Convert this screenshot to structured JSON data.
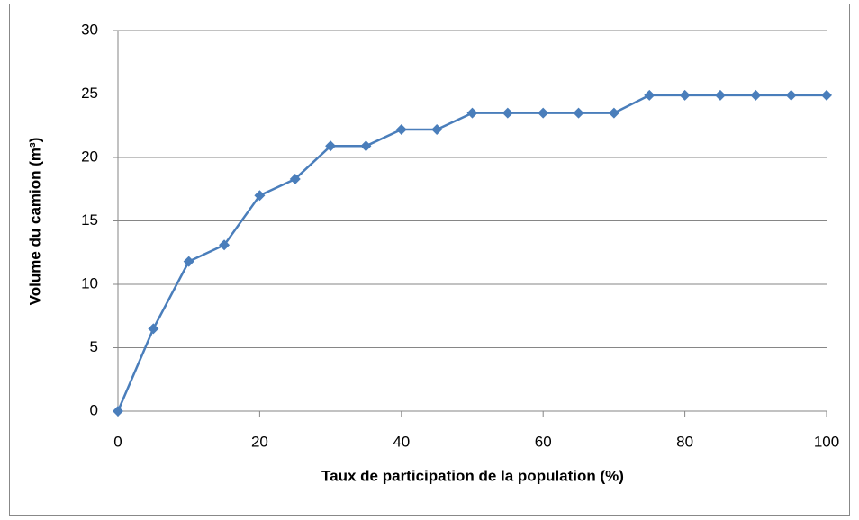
{
  "chart_data": {
    "type": "line",
    "x_label": "Taux de participation de la population (%)",
    "y_label": "Volume du camion (m³)",
    "x": [
      0,
      5,
      10,
      15,
      20,
      25,
      30,
      35,
      40,
      45,
      50,
      55,
      60,
      65,
      70,
      75,
      80,
      85,
      90,
      95,
      100
    ],
    "series": [
      {
        "color": "#4a7ebb",
        "values": [
          0,
          6.5,
          11.8,
          13.1,
          17.0,
          18.3,
          20.9,
          20.9,
          22.2,
          22.2,
          23.5,
          23.5,
          23.5,
          23.5,
          23.5,
          24.9,
          24.9,
          24.9,
          24.9,
          24.9,
          24.9
        ]
      }
    ],
    "xlim": [
      0,
      100
    ],
    "xticks": [
      0,
      20,
      40,
      60,
      80,
      100
    ],
    "ylim": [
      0,
      30
    ],
    "yticks": [
      0,
      5,
      10,
      15,
      20,
      25,
      30
    ],
    "grid": true
  }
}
